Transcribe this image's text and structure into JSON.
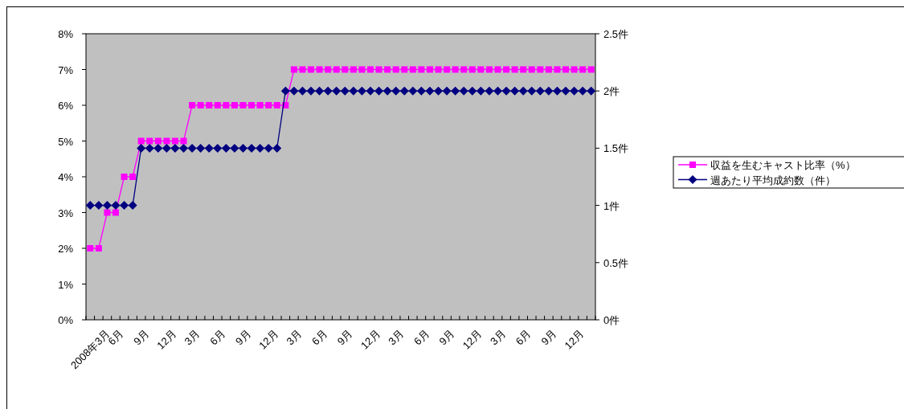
{
  "chart_data": {
    "type": "line",
    "categories": [
      "2008年3月",
      null,
      null,
      "6月",
      null,
      null,
      "9月",
      null,
      null,
      "12月",
      null,
      null,
      "3月",
      null,
      null,
      "6月",
      null,
      null,
      "9月",
      null,
      null,
      "12月",
      null,
      null,
      "3月",
      null,
      null,
      "6月",
      null,
      null,
      "9月",
      null,
      null,
      "12月",
      null,
      null,
      "3月",
      null,
      null,
      "6月",
      null,
      null,
      "9月",
      null,
      null,
      "12月",
      null,
      null,
      "3月",
      null,
      null,
      "6月",
      null,
      null,
      "9月",
      null,
      null,
      "12月",
      null,
      null
    ],
    "series": [
      {
        "name": "収益を生むキャスト比率（%）",
        "color": "#ff00ff",
        "marker": "square",
        "values": [
          2,
          2,
          3,
          3,
          4,
          4,
          5,
          5,
          5,
          5,
          5,
          5,
          6,
          6,
          6,
          6,
          6,
          6,
          6,
          6,
          6,
          6,
          6,
          6,
          7,
          7,
          7,
          7,
          7,
          7,
          7,
          7,
          7,
          7,
          7,
          7,
          7,
          7,
          7,
          7,
          7,
          7,
          7,
          7,
          7,
          7,
          7,
          7,
          7,
          7,
          7,
          7,
          7,
          7,
          7,
          7,
          7,
          7,
          7,
          7
        ]
      },
      {
        "name": "週あたり平均成約数（件）",
        "color": "#000080",
        "marker": "diamond",
        "axis": "y2",
        "values": [
          1,
          1,
          1,
          1,
          1,
          1,
          1.5,
          1.5,
          1.5,
          1.5,
          1.5,
          1.5,
          1.5,
          1.5,
          1.5,
          1.5,
          1.5,
          1.5,
          1.5,
          1.5,
          1.5,
          1.5,
          1.5,
          2,
          2,
          2,
          2,
          2,
          2,
          2,
          2,
          2,
          2,
          2,
          2,
          2,
          2,
          2,
          2,
          2,
          2,
          2,
          2,
          2,
          2,
          2,
          2,
          2,
          2,
          2,
          2,
          2,
          2,
          2,
          2,
          2,
          2,
          2,
          2,
          2
        ]
      }
    ],
    "ylim": [
      0,
      8
    ],
    "yticks": [
      {
        "value": 0,
        "label": "0%"
      },
      {
        "value": 1,
        "label": "1%"
      },
      {
        "value": 2,
        "label": "2%"
      },
      {
        "value": 3,
        "label": "3%"
      },
      {
        "value": 4,
        "label": "4%"
      },
      {
        "value": 5,
        "label": "5%"
      },
      {
        "value": 6,
        "label": "6%"
      },
      {
        "value": 7,
        "label": "7%"
      },
      {
        "value": 8,
        "label": "8%"
      }
    ],
    "y2lim": [
      0,
      2.5
    ],
    "y2ticks": [
      {
        "value": 0,
        "label": "0件"
      },
      {
        "value": 0.5,
        "label": "0.5件"
      },
      {
        "value": 1,
        "label": "1件"
      },
      {
        "value": 1.5,
        "label": "1.5件"
      },
      {
        "value": 2,
        "label": "2件"
      },
      {
        "value": 2.5,
        "label": "2.5件"
      }
    ],
    "legend": "right"
  }
}
